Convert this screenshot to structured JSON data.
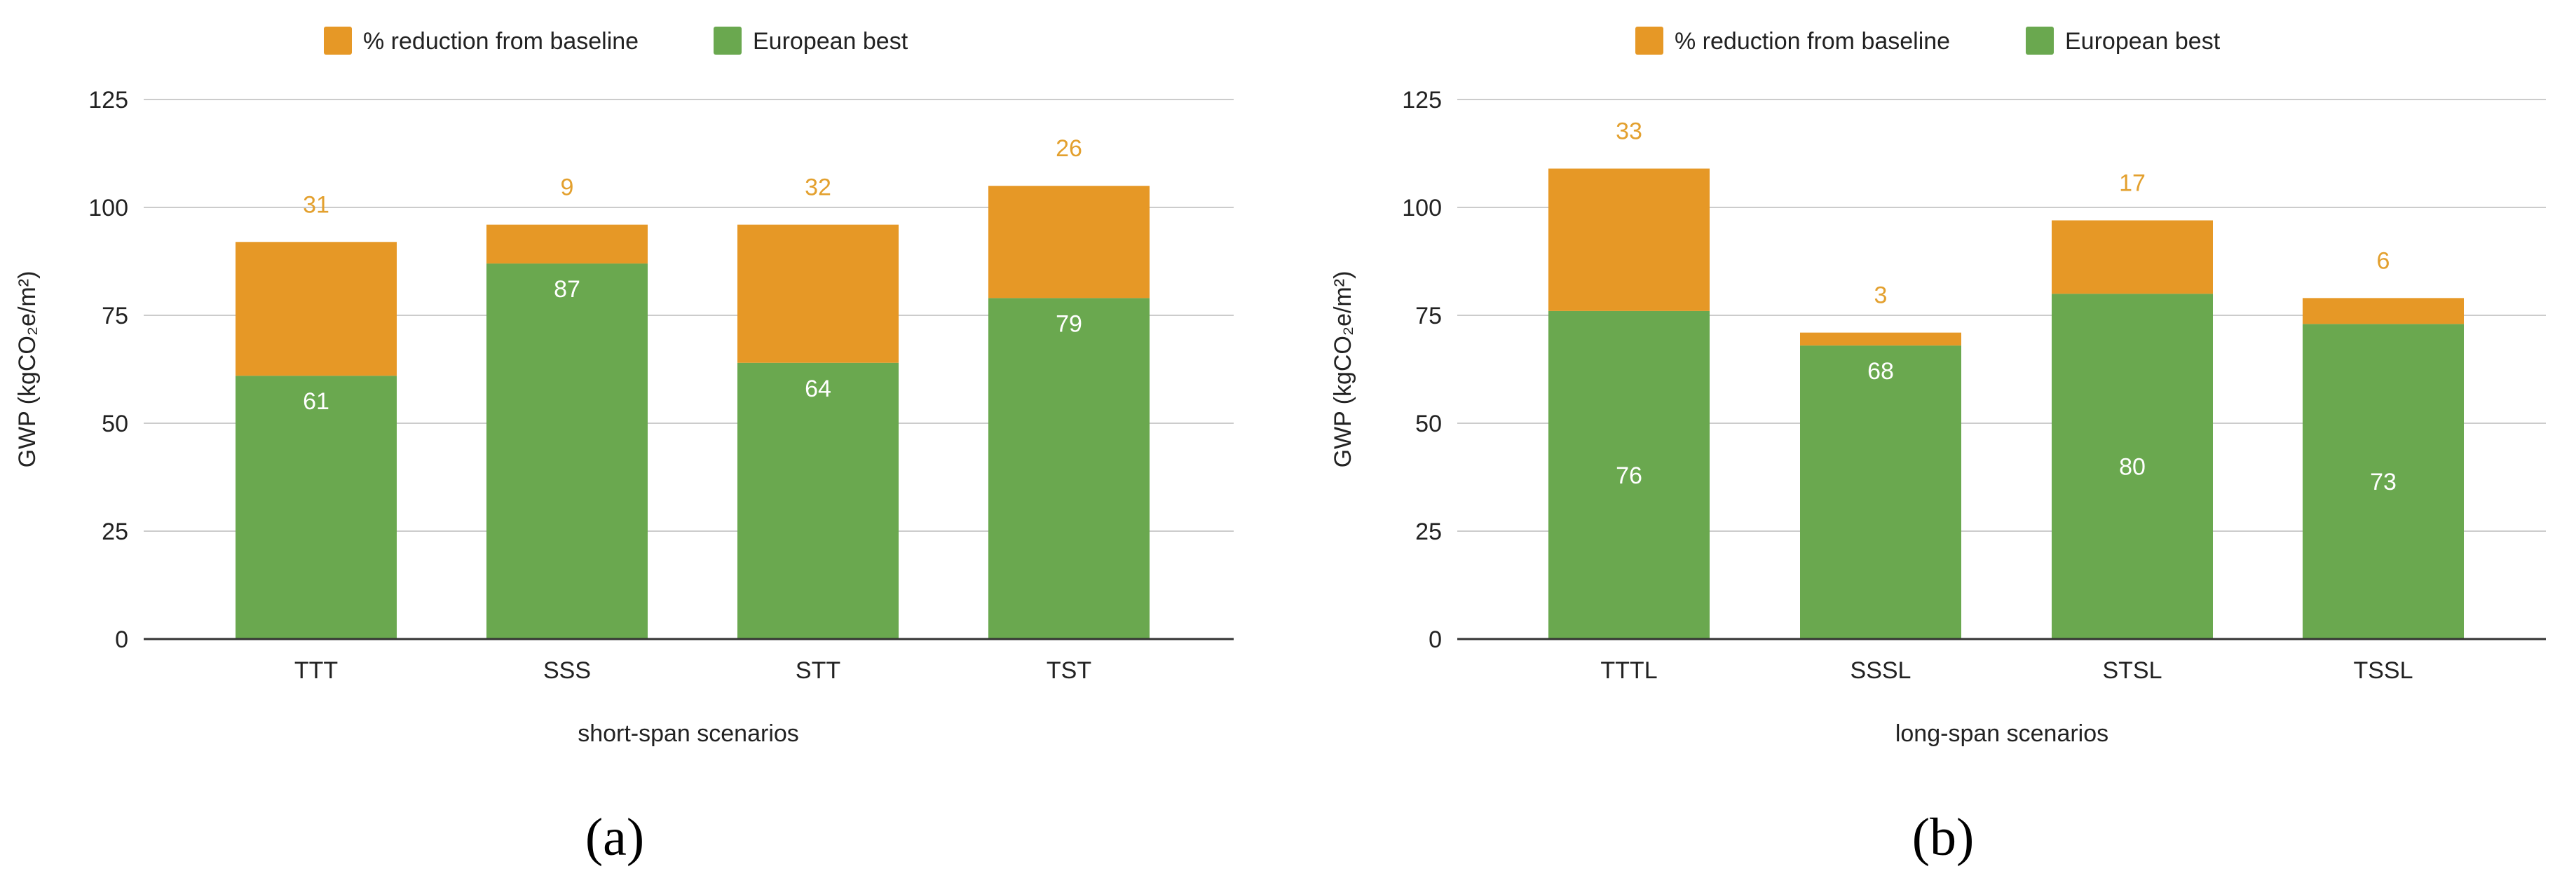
{
  "colors": {
    "european_best": "#6aa84f",
    "reduction": "#e69826",
    "reduction_label": "#e3a02e",
    "inner_label": "#ffffff",
    "gridline": "#cccccc",
    "axis": "#333333",
    "text": "#222222"
  },
  "chart_data": [
    {
      "type": "bar",
      "stacked": true,
      "panel_label": "(a)",
      "title": "",
      "categories": [
        "TTT",
        "SSS",
        "STT",
        "TST"
      ],
      "series": [
        {
          "name": "European best",
          "values": [
            61,
            87,
            64,
            79
          ]
        },
        {
          "name": "% reduction from baseline",
          "values": [
            31,
            9,
            32,
            26
          ]
        }
      ],
      "legend": [
        "% reduction from baseline",
        "European best"
      ],
      "legend_position": "top-center",
      "xlabel": "short-span scenarios",
      "ylabel": "GWP (kgCO₂e/m²)",
      "ylim": [
        0,
        125
      ],
      "yticks": [
        "0",
        "25",
        "50",
        "75",
        "100",
        "125"
      ],
      "grid": true
    },
    {
      "type": "bar",
      "stacked": true,
      "panel_label": "(b)",
      "title": "",
      "categories": [
        "TTTL",
        "SSSL",
        "STSL",
        "TSSL"
      ],
      "series": [
        {
          "name": "European best",
          "values": [
            76,
            68,
            80,
            73
          ]
        },
        {
          "name": "% reduction from baseline",
          "values": [
            33,
            3,
            17,
            6
          ]
        }
      ],
      "legend": [
        "% reduction from baseline",
        "European best"
      ],
      "legend_position": "top-center",
      "xlabel": "long-span scenarios",
      "ylabel": "GWP (kgCO₂e/m²)",
      "ylim": [
        0,
        125
      ],
      "yticks": [
        "0",
        "25",
        "50",
        "75",
        "100",
        "125"
      ],
      "grid": true
    }
  ]
}
